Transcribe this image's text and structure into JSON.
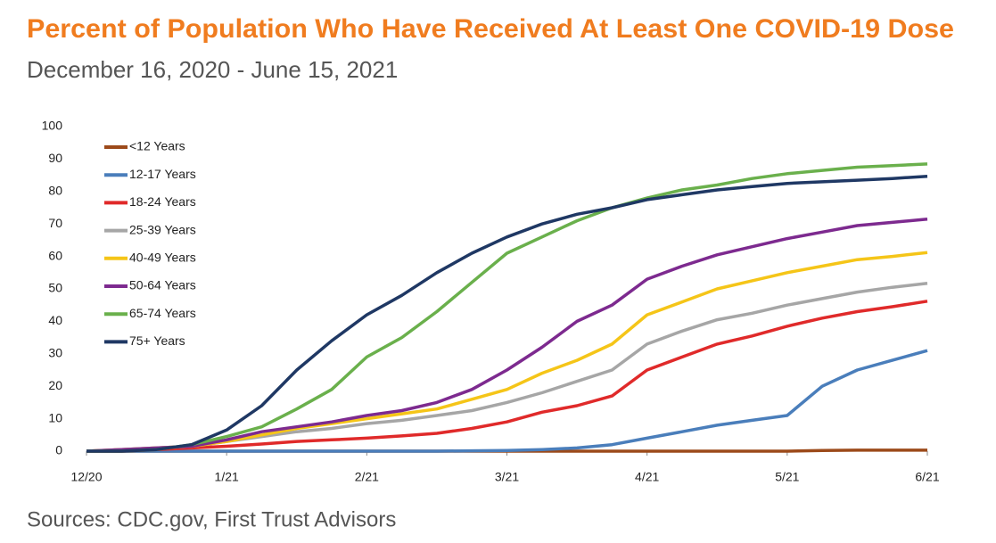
{
  "chart_data": {
    "type": "line",
    "title": "Percent of Population Who Have Received At Least One COVID-19 Dose",
    "subtitle": "December 16, 2020 - June 15, 2021",
    "source": "Sources: CDC.gov, First Trust Advisors",
    "categories": [
      "12/20",
      null,
      null,
      null,
      "1/21",
      null,
      null,
      null,
      "2/21",
      null,
      null,
      null,
      "3/21",
      null,
      null,
      null,
      "4/21",
      null,
      null,
      null,
      "5/21",
      null,
      null,
      null,
      "6/21"
    ],
    "ylim": [
      0,
      100
    ],
    "yticks": [
      0,
      10,
      20,
      30,
      40,
      50,
      60,
      70,
      80,
      90,
      100
    ],
    "legend": "top-left",
    "series": [
      {
        "name": "<12 Years",
        "color": "#9c4a1a",
        "values": [
          0,
          0,
          0,
          0,
          0,
          0,
          0,
          0,
          0,
          0,
          0,
          0,
          0,
          0,
          0,
          0,
          0,
          0,
          0,
          0,
          0,
          0.2,
          0.3,
          0.3,
          0.3
        ]
      },
      {
        "name": "12-17 Years",
        "color": "#4a7ebb",
        "values": [
          0,
          0,
          0,
          0,
          0,
          0,
          0,
          0,
          0,
          0,
          0,
          0.1,
          0.2,
          0.5,
          1,
          2,
          4,
          6,
          8,
          9.5,
          11,
          20,
          25,
          28,
          31
        ]
      },
      {
        "name": "18-24 Years",
        "color": "#e02a2a",
        "values": [
          0,
          0,
          0.5,
          1,
          1.5,
          2.2,
          3,
          3.5,
          4,
          4.7,
          5.5,
          7,
          9,
          12,
          14,
          17,
          25,
          29,
          33,
          35.5,
          38.5,
          41,
          43,
          44.5,
          46.2
        ]
      },
      {
        "name": "25-39 Years",
        "color": "#a6a6a6",
        "values": [
          0,
          0.5,
          1,
          1.5,
          3,
          4.5,
          6,
          7,
          8.5,
          9.5,
          11,
          12.5,
          15,
          18,
          21.5,
          25,
          33,
          37,
          40.5,
          42.5,
          45,
          47,
          49,
          50.5,
          51.7
        ]
      },
      {
        "name": "40-49 Years",
        "color": "#f5c518",
        "values": [
          0,
          0.5,
          1,
          1.5,
          3,
          5,
          7,
          8.5,
          10,
          11.5,
          13,
          16,
          19,
          24,
          28,
          33,
          42,
          46,
          50,
          52.5,
          55,
          57,
          59,
          60,
          61.2
        ]
      },
      {
        "name": "50-64 Years",
        "color": "#7d2a8f",
        "values": [
          0,
          0.5,
          1,
          1.5,
          3.5,
          6,
          7.5,
          9,
          11,
          12.5,
          15,
          19,
          25,
          32,
          40,
          45,
          53,
          57,
          60.5,
          63,
          65.5,
          67.5,
          69.5,
          70.5,
          71.5
        ]
      },
      {
        "name": "65-74 Years",
        "color": "#6ab04c",
        "values": [
          0,
          0,
          0.5,
          2,
          4.5,
          7.5,
          13,
          19,
          29,
          35,
          43,
          52,
          61,
          66,
          71,
          75,
          78,
          80.5,
          82,
          84,
          85.5,
          86.5,
          87.5,
          88,
          88.5
        ]
      },
      {
        "name": "75+ Years",
        "color": "#1f3864",
        "values": [
          0,
          0,
          0.5,
          2,
          6.5,
          14,
          25,
          34,
          42,
          48,
          55,
          61,
          66,
          70,
          73,
          75,
          77.5,
          79,
          80.5,
          81.5,
          82.5,
          83,
          83.5,
          84,
          84.7
        ]
      }
    ]
  }
}
